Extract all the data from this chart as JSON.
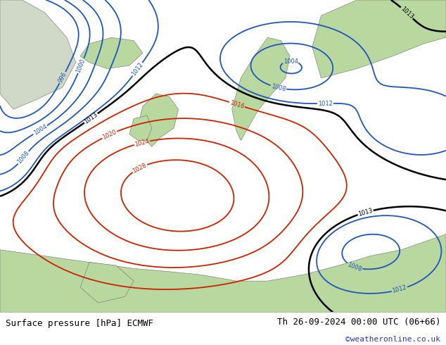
{
  "title_left": "Surface pressure [hPa] ECMWF",
  "title_right": "Th 26-09-2024 00:00 UTC (06+66)",
  "credit": "©weatheronline.co.uk",
  "bg_ocean": "#dcdcdc",
  "land_color": "#b8d8a0",
  "font_family": "monospace",
  "credit_color": "#3333bb",
  "levels_blue": [
    996,
    1000,
    1004,
    1008,
    1012
  ],
  "levels_black": [
    1013
  ],
  "levels_red": [
    1016,
    1020,
    1024,
    1028
  ],
  "color_blue": "#2255bb",
  "color_black": "#000000",
  "color_red": "#cc2200"
}
